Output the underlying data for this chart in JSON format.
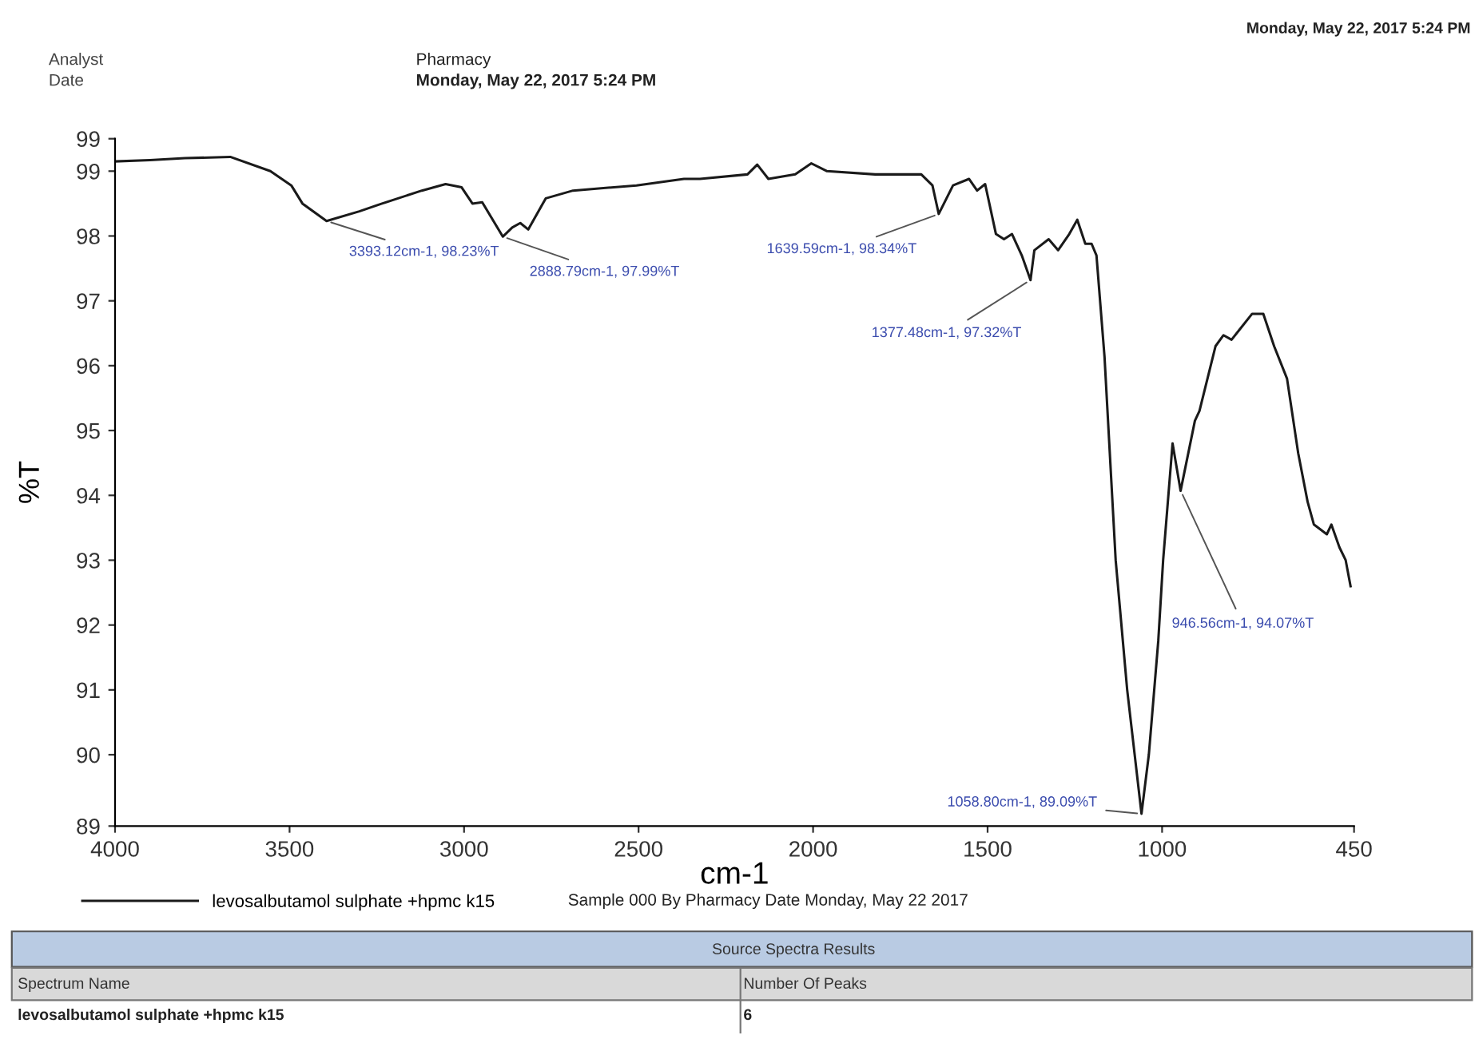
{
  "chart_data": {
    "type": "line",
    "xlabel": "cm-1",
    "ylabel": "%T",
    "series": [
      {
        "name": "levosalbutamol sulphate +hpmc k15",
        "color": "#1a1a1a",
        "x": [
          4000,
          3900,
          3800,
          3670,
          3555,
          3495,
          3463,
          3394,
          3300,
          3235,
          3121,
          3053,
          3007,
          2976,
          2948,
          2889,
          2862,
          2839,
          2816,
          2766,
          2688,
          2506,
          2370,
          2324,
          2188,
          2160,
          2128,
          2051,
          2005,
          1960,
          1822,
          1690,
          1658,
          1640,
          1599,
          1553,
          1530,
          1507,
          1476,
          1453,
          1430,
          1402,
          1377,
          1366,
          1325,
          1298,
          1266,
          1243,
          1220,
          1202,
          1188,
          1165,
          1133,
          1100,
          1059,
          1038,
          1011,
          997,
          970,
          947,
          906,
          893,
          847,
          824,
          801,
          779,
          742,
          710,
          679,
          642,
          610,
          583,
          565,
          528,
          515,
          492,
          474,
          460
        ],
        "values": [
          99.15,
          99.17,
          99.2,
          99.22,
          99.0,
          98.78,
          98.5,
          98.23,
          98.38,
          98.5,
          98.7,
          98.8,
          98.75,
          98.5,
          98.52,
          97.99,
          98.13,
          98.2,
          98.1,
          98.58,
          98.7,
          98.78,
          98.88,
          98.88,
          98.95,
          99.1,
          98.88,
          98.95,
          99.12,
          99.0,
          98.95,
          98.95,
          98.78,
          98.34,
          98.78,
          98.88,
          98.7,
          98.8,
          98.03,
          97.95,
          98.03,
          97.7,
          97.32,
          97.78,
          97.95,
          97.78,
          98.03,
          98.25,
          97.88,
          97.88,
          97.7,
          96.14,
          93.0,
          91.0,
          89.09,
          90.0,
          91.75,
          93.0,
          94.8,
          94.07,
          95.15,
          95.3,
          96.3,
          96.47,
          96.4,
          96.55,
          96.8,
          96.8,
          96.3,
          95.8,
          94.65,
          93.9,
          93.55,
          93.4,
          93.55,
          93.2,
          93.0,
          92.6
        ]
      }
    ],
    "xlim": [
      4000,
      450
    ],
    "xticks": [
      4000,
      3500,
      3000,
      2500,
      2000,
      1500,
      1000,
      450
    ],
    "ylim": [
      88.9,
      99.5
    ],
    "yticks": [
      {
        "value": 88.9,
        "label": "89"
      },
      90,
      91,
      92,
      93,
      94,
      95,
      96,
      97,
      98,
      99,
      {
        "value": 99.5,
        "label": "99"
      }
    ],
    "grid": false,
    "legend": "bottom",
    "annotations": [
      {
        "text": "3393.12cm-1, 98.23%T",
        "x": 3393.12,
        "y": 98.23
      },
      {
        "text": "2888.79cm-1, 97.99%T",
        "x": 2888.79,
        "y": 97.99
      },
      {
        "text": "1639.59cm-1, 98.34%T",
        "x": 1639.59,
        "y": 98.34
      },
      {
        "text": "1377.48cm-1, 97.32%T",
        "x": 1377.48,
        "y": 97.32
      },
      {
        "text": "946.56cm-1, 94.07%T",
        "x": 946.56,
        "y": 94.07
      },
      {
        "text": "1058.80cm-1, 89.09%T",
        "x": 1058.8,
        "y": 89.09
      },
      "Analyst",
      "Date",
      "Pharmacy",
      "Monday, May 22, 2017 5:24 PM",
      "Monday, May 22, 2017 5:24 PM",
      "Sample 000 By Pharmacy Date Monday, May 22 2017",
      "Source Spectra Results",
      "Spectrum Name",
      "Number Of Peaks",
      "levosalbutamol sulphate +hpmc k15",
      "6"
    ]
  }
}
